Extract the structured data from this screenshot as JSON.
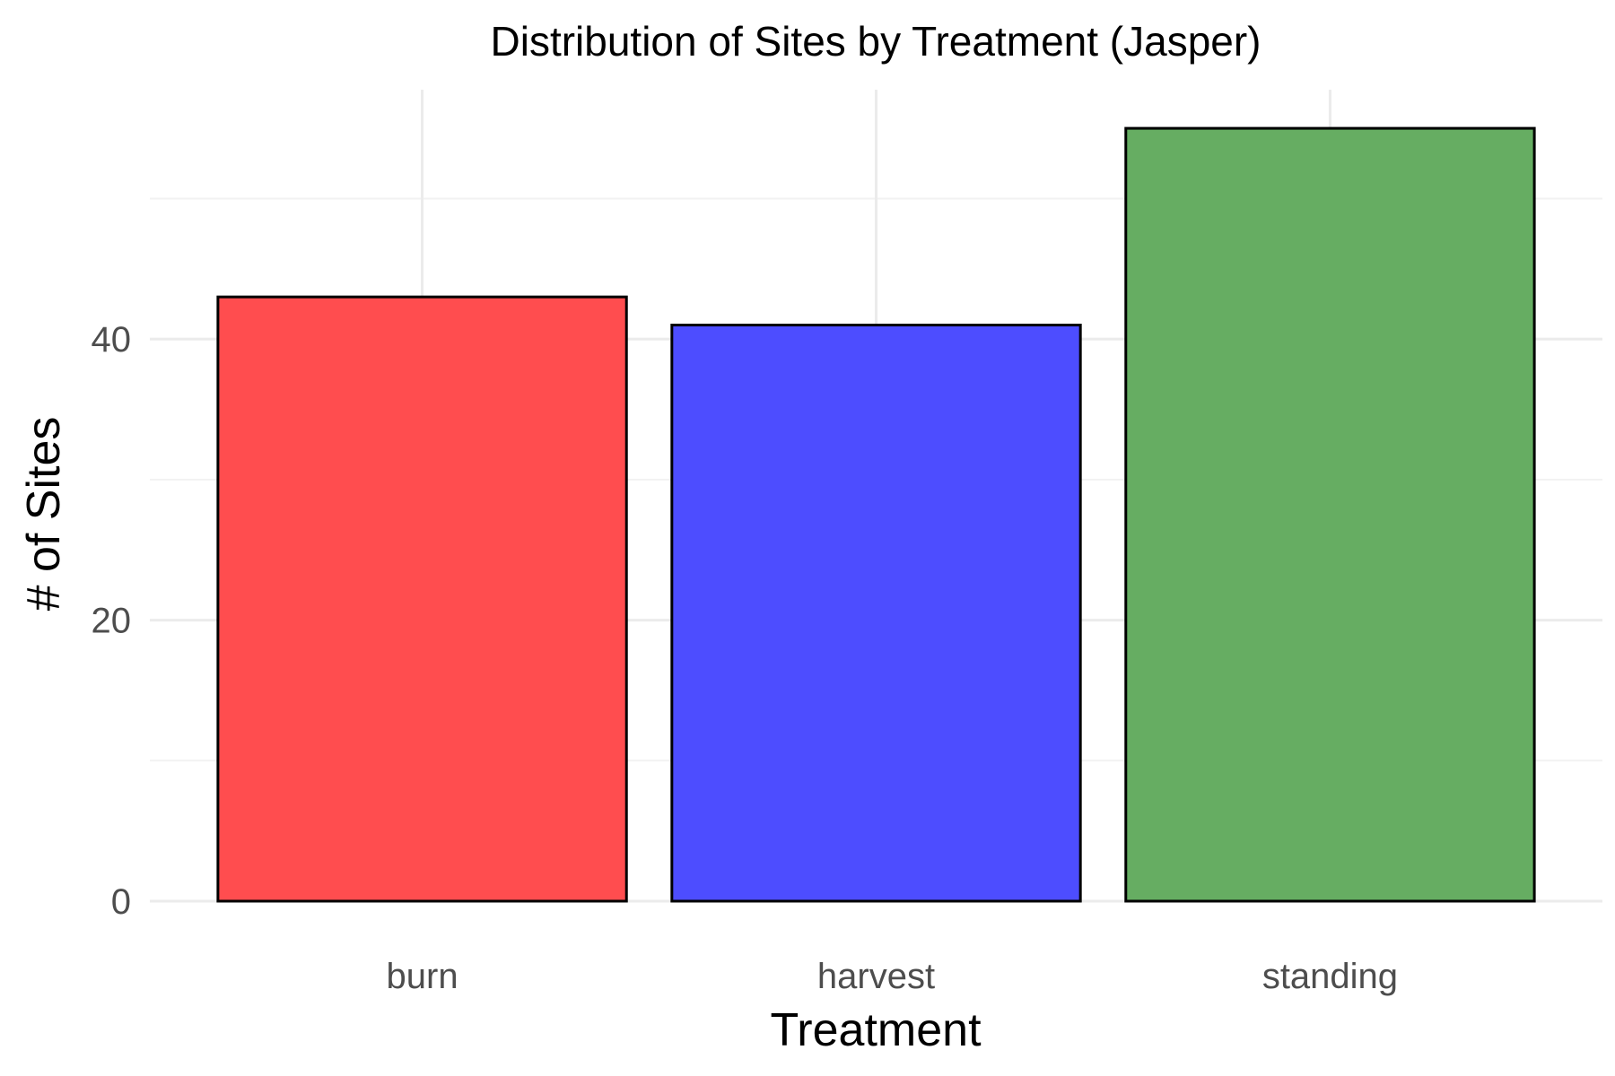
{
  "chart_data": {
    "type": "bar",
    "title": "Distribution of Sites by Treatment (Jasper)",
    "xlabel": "Treatment",
    "ylabel": "# of Sites",
    "categories": [
      "burn",
      "harvest",
      "standing"
    ],
    "values": [
      43,
      41,
      55
    ],
    "colors": [
      "#ff4d4f",
      "#4d4dff",
      "#66ad62"
    ],
    "bar_outline": "#000000",
    "ylim": [
      0,
      57.75
    ],
    "yticks": [
      0,
      20,
      40
    ],
    "yticks_minor": [
      10,
      30,
      50
    ],
    "grid": true,
    "legend": "none"
  }
}
